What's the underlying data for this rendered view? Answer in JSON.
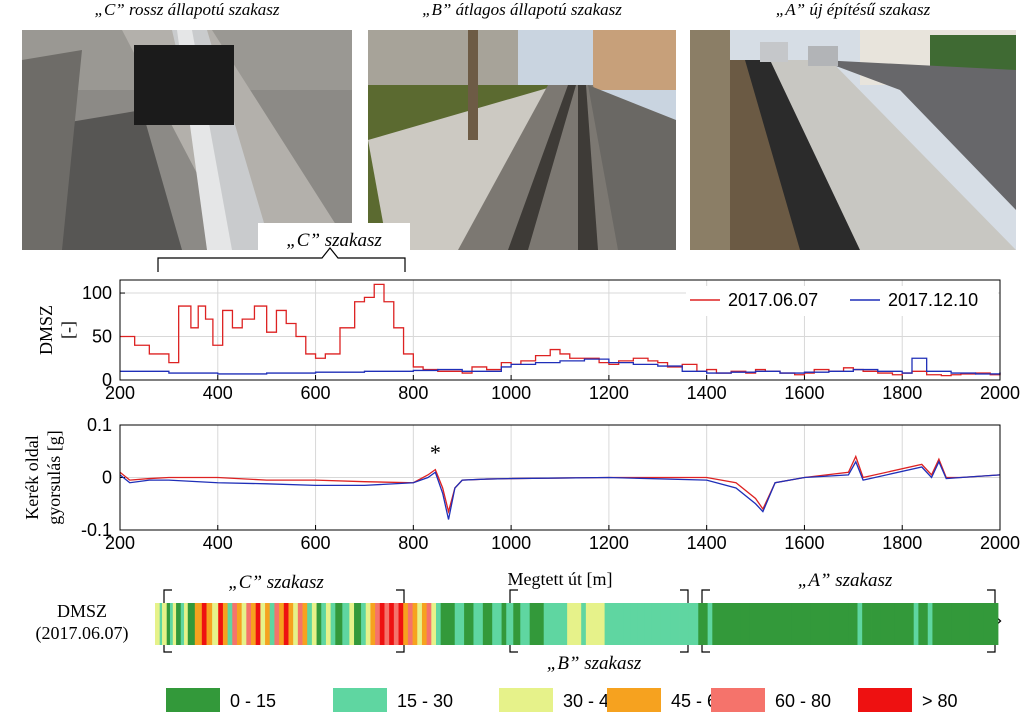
{
  "captions": [
    "„C” rossz állapotú szakasz",
    "„B” átlagos állapotú szakasz",
    "„A” új építésű szakasz"
  ],
  "photos": [
    {
      "name": "photo-section-c",
      "colors": {
        "sky": "#8f8e8a",
        "ground": "#8c8a86",
        "rail": "#b9bcbf"
      }
    },
    {
      "name": "photo-section-b",
      "colors": {
        "sky": "#c9d4e0",
        "ground": "#5b6a30",
        "rail": "#7c7872"
      }
    },
    {
      "name": "photo-section-a",
      "colors": {
        "sky": "#d6dde5",
        "ground": "#8a8780",
        "rail": "#c7c6c1"
      }
    }
  ],
  "section_labels": {
    "c": "„C” szakasz",
    "b": "„B” szakasz",
    "a": "„A” szakasz"
  },
  "colors": {
    "red": "#dd2222",
    "blue": "#1f2fb8",
    "grid": "#d8d8d8"
  },
  "chart_data": [
    {
      "type": "line",
      "name": "dmsz",
      "ylabel": [
        "DMSZ",
        "[-]"
      ],
      "xlim": [
        200,
        2000
      ],
      "ylim": [
        0,
        115
      ],
      "yticks": [
        0,
        50,
        100
      ],
      "xticks": [
        200,
        400,
        600,
        800,
        1000,
        1200,
        1400,
        1600,
        1800,
        2000
      ],
      "legend": {
        "placement": "top-right"
      },
      "series": [
        {
          "name": "2017.06.07",
          "color": "#dd2222",
          "step": true,
          "x": [
            200,
            230,
            260,
            300,
            320,
            345,
            360,
            375,
            390,
            410,
            430,
            450,
            475,
            500,
            520,
            540,
            560,
            580,
            600,
            620,
            650,
            680,
            700,
            720,
            740,
            760,
            780,
            800,
            820,
            850,
            880,
            900,
            920,
            950,
            980,
            1000,
            1020,
            1050,
            1080,
            1100,
            1120,
            1150,
            1180,
            1200,
            1220,
            1250,
            1280,
            1300,
            1320,
            1350,
            1380,
            1400,
            1420,
            1450,
            1480,
            1500,
            1520,
            1550,
            1580,
            1600,
            1620,
            1650,
            1680,
            1700,
            1720,
            1750,
            1780,
            1800,
            1820,
            1850,
            1880,
            1900,
            1920,
            1950,
            1980,
            2000
          ],
          "y": [
            50,
            40,
            30,
            20,
            85,
            60,
            85,
            70,
            40,
            80,
            60,
            70,
            85,
            55,
            80,
            65,
            50,
            30,
            25,
            30,
            60,
            90,
            95,
            110,
            90,
            60,
            30,
            15,
            12,
            10,
            10,
            8,
            15,
            12,
            20,
            18,
            22,
            28,
            35,
            30,
            25,
            25,
            20,
            18,
            22,
            25,
            22,
            20,
            15,
            18,
            10,
            12,
            8,
            10,
            8,
            12,
            10,
            8,
            6,
            8,
            12,
            10,
            14,
            12,
            10,
            8,
            6,
            8,
            10,
            6,
            5,
            6,
            7,
            8,
            6,
            8
          ]
        },
        {
          "name": "2017.12.10",
          "color": "#1f2fb8",
          "step": true,
          "x": [
            200,
            300,
            400,
            500,
            600,
            700,
            800,
            850,
            900,
            950,
            980,
            1000,
            1050,
            1100,
            1150,
            1200,
            1250,
            1300,
            1350,
            1400,
            1450,
            1500,
            1550,
            1600,
            1650,
            1700,
            1750,
            1800,
            1820,
            1850,
            1900,
            1950,
            2000
          ],
          "y": [
            10,
            8,
            7,
            8,
            9,
            10,
            11,
            12,
            10,
            10,
            15,
            18,
            20,
            22,
            24,
            20,
            18,
            16,
            10,
            8,
            9,
            10,
            8,
            9,
            10,
            12,
            10,
            8,
            25,
            10,
            8,
            7,
            9
          ]
        }
      ]
    },
    {
      "type": "line",
      "name": "accel",
      "ylabel": [
        "Kerék oldal",
        "gyorsulás [g]"
      ],
      "xlabel": "Megtett út [m]",
      "xlim": [
        200,
        2000
      ],
      "ylim": [
        -0.1,
        0.1
      ],
      "yticks": [
        -0.1,
        0,
        0.1
      ],
      "xticks": [
        200,
        400,
        600,
        800,
        1000,
        1200,
        1400,
        1600,
        1800,
        2000
      ],
      "annotation": {
        "text": "*",
        "x": 845
      },
      "series": [
        {
          "name": "2017.06.07",
          "color": "#dd2222",
          "x": [
            200,
            220,
            260,
            300,
            400,
            500,
            600,
            700,
            800,
            830,
            845,
            860,
            872,
            885,
            900,
            950,
            1000,
            1200,
            1400,
            1460,
            1500,
            1515,
            1540,
            1600,
            1690,
            1705,
            1720,
            1840,
            1860,
            1875,
            1890,
            1920,
            2000
          ],
          "y": [
            0.01,
            -0.005,
            -0.002,
            0.0,
            0.0,
            -0.005,
            -0.005,
            -0.008,
            -0.01,
            0.005,
            0.015,
            -0.02,
            -0.065,
            -0.02,
            -0.005,
            -0.003,
            -0.002,
            0.0,
            0.0,
            -0.01,
            -0.04,
            -0.06,
            -0.01,
            0.0,
            0.01,
            0.04,
            0.0,
            0.025,
            0.005,
            0.035,
            0.0,
            0.0,
            0.005
          ]
        },
        {
          "name": "2017.12.10",
          "color": "#1f2fb8",
          "x": [
            200,
            220,
            260,
            300,
            400,
            500,
            600,
            700,
            800,
            830,
            845,
            860,
            872,
            885,
            900,
            950,
            1000,
            1200,
            1400,
            1460,
            1500,
            1515,
            1540,
            1600,
            1690,
            1705,
            1720,
            1840,
            1860,
            1875,
            1890,
            1920,
            2000
          ],
          "y": [
            0.005,
            -0.01,
            -0.005,
            -0.005,
            -0.01,
            -0.012,
            -0.015,
            -0.015,
            -0.01,
            0.0,
            0.01,
            -0.03,
            -0.08,
            -0.02,
            -0.005,
            -0.003,
            -0.002,
            0.0,
            -0.005,
            -0.02,
            -0.05,
            -0.065,
            -0.01,
            0.0,
            0.005,
            0.03,
            -0.005,
            0.02,
            0.0,
            0.03,
            -0.002,
            0.0,
            0.005
          ]
        }
      ]
    },
    {
      "type": "heatmap",
      "name": "dmsz-bar",
      "row_label": [
        "DMSZ",
        "(2017.06.07)"
      ],
      "xlim": [
        200,
        2000
      ],
      "legend": {
        "placement": "bottom",
        "bins": [
          {
            "label": "0 - 15",
            "color": "#33993a"
          },
          {
            "label": "15 - 30",
            "color": "#5fd6a1"
          },
          {
            "label": "30 - 45",
            "color": "#e6f28a"
          },
          {
            "label": "45 - 60",
            "color": "#f6a21f"
          },
          {
            "label": "60 - 80",
            "color": "#f5736b"
          },
          {
            "label": "> 80",
            "color": "#ee1111"
          }
        ]
      },
      "segments": [
        {
          "x0": 200,
          "x1": 210,
          "bin": 2
        },
        {
          "x0": 210,
          "x1": 215,
          "bin": 1
        },
        {
          "x0": 215,
          "x1": 225,
          "bin": 2
        },
        {
          "x0": 225,
          "x1": 232,
          "bin": 0
        },
        {
          "x0": 232,
          "x1": 238,
          "bin": 1
        },
        {
          "x0": 238,
          "x1": 245,
          "bin": 2
        },
        {
          "x0": 245,
          "x1": 255,
          "bin": 0
        },
        {
          "x0": 255,
          "x1": 262,
          "bin": 1
        },
        {
          "x0": 262,
          "x1": 270,
          "bin": 2
        },
        {
          "x0": 270,
          "x1": 285,
          "bin": 0
        },
        {
          "x0": 285,
          "x1": 300,
          "bin": 3
        },
        {
          "x0": 300,
          "x1": 310,
          "bin": 5
        },
        {
          "x0": 310,
          "x1": 322,
          "bin": 3
        },
        {
          "x0": 322,
          "x1": 335,
          "bin": 2
        },
        {
          "x0": 335,
          "x1": 345,
          "bin": 5
        },
        {
          "x0": 345,
          "x1": 355,
          "bin": 3
        },
        {
          "x0": 355,
          "x1": 365,
          "bin": 1
        },
        {
          "x0": 365,
          "x1": 375,
          "bin": 4
        },
        {
          "x0": 375,
          "x1": 385,
          "bin": 3
        },
        {
          "x0": 385,
          "x1": 395,
          "bin": 2
        },
        {
          "x0": 395,
          "x1": 405,
          "bin": 4
        },
        {
          "x0": 405,
          "x1": 415,
          "bin": 3
        },
        {
          "x0": 415,
          "x1": 425,
          "bin": 5
        },
        {
          "x0": 425,
          "x1": 435,
          "bin": 2
        },
        {
          "x0": 435,
          "x1": 445,
          "bin": 3
        },
        {
          "x0": 445,
          "x1": 455,
          "bin": 1
        },
        {
          "x0": 455,
          "x1": 465,
          "bin": 4
        },
        {
          "x0": 465,
          "x1": 475,
          "bin": 3
        },
        {
          "x0": 475,
          "x1": 485,
          "bin": 5
        },
        {
          "x0": 485,
          "x1": 495,
          "bin": 3
        },
        {
          "x0": 495,
          "x1": 505,
          "bin": 2
        },
        {
          "x0": 505,
          "x1": 515,
          "bin": 4
        },
        {
          "x0": 515,
          "x1": 525,
          "bin": 3
        },
        {
          "x0": 525,
          "x1": 535,
          "bin": 1
        },
        {
          "x0": 535,
          "x1": 545,
          "bin": 2
        },
        {
          "x0": 545,
          "x1": 555,
          "bin": 0
        },
        {
          "x0": 555,
          "x1": 565,
          "bin": 1
        },
        {
          "x0": 565,
          "x1": 575,
          "bin": 2
        },
        {
          "x0": 575,
          "x1": 585,
          "bin": 1
        },
        {
          "x0": 585,
          "x1": 600,
          "bin": 0
        },
        {
          "x0": 600,
          "x1": 615,
          "bin": 1
        },
        {
          "x0": 615,
          "x1": 625,
          "bin": 2
        },
        {
          "x0": 625,
          "x1": 640,
          "bin": 0
        },
        {
          "x0": 640,
          "x1": 650,
          "bin": 1
        },
        {
          "x0": 650,
          "x1": 660,
          "bin": 2
        },
        {
          "x0": 660,
          "x1": 670,
          "bin": 3
        },
        {
          "x0": 670,
          "x1": 680,
          "bin": 4
        },
        {
          "x0": 680,
          "x1": 690,
          "bin": 5
        },
        {
          "x0": 690,
          "x1": 700,
          "bin": 4
        },
        {
          "x0": 700,
          "x1": 710,
          "bin": 5
        },
        {
          "x0": 710,
          "x1": 720,
          "bin": 4
        },
        {
          "x0": 720,
          "x1": 730,
          "bin": 5
        },
        {
          "x0": 730,
          "x1": 740,
          "bin": 3
        },
        {
          "x0": 740,
          "x1": 750,
          "bin": 4
        },
        {
          "x0": 750,
          "x1": 760,
          "bin": 3
        },
        {
          "x0": 760,
          "x1": 770,
          "bin": 2
        },
        {
          "x0": 770,
          "x1": 780,
          "bin": 3
        },
        {
          "x0": 780,
          "x1": 790,
          "bin": 4
        },
        {
          "x0": 790,
          "x1": 800,
          "bin": 2
        },
        {
          "x0": 800,
          "x1": 810,
          "bin": 1
        },
        {
          "x0": 810,
          "x1": 840,
          "bin": 0
        },
        {
          "x0": 840,
          "x1": 860,
          "bin": 1
        },
        {
          "x0": 860,
          "x1": 880,
          "bin": 0
        },
        {
          "x0": 880,
          "x1": 900,
          "bin": 1
        },
        {
          "x0": 900,
          "x1": 920,
          "bin": 0
        },
        {
          "x0": 920,
          "x1": 940,
          "bin": 1
        },
        {
          "x0": 940,
          "x1": 950,
          "bin": 0
        },
        {
          "x0": 950,
          "x1": 965,
          "bin": 1
        },
        {
          "x0": 965,
          "x1": 980,
          "bin": 0
        },
        {
          "x0": 980,
          "x1": 1000,
          "bin": 1
        },
        {
          "x0": 1000,
          "x1": 1030,
          "bin": 0
        },
        {
          "x0": 1030,
          "x1": 1080,
          "bin": 1
        },
        {
          "x0": 1080,
          "x1": 1110,
          "bin": 2
        },
        {
          "x0": 1110,
          "x1": 1120,
          "bin": 1
        },
        {
          "x0": 1120,
          "x1": 1160,
          "bin": 2
        },
        {
          "x0": 1160,
          "x1": 1200,
          "bin": 1
        },
        {
          "x0": 1200,
          "x1": 1215,
          "bin": 1
        },
        {
          "x0": 1215,
          "x1": 1230,
          "bin": 1
        },
        {
          "x0": 1230,
          "x1": 1245,
          "bin": 1
        },
        {
          "x0": 1245,
          "x1": 1260,
          "bin": 1
        },
        {
          "x0": 1260,
          "x1": 1280,
          "bin": 1
        },
        {
          "x0": 1280,
          "x1": 1300,
          "bin": 1
        },
        {
          "x0": 1300,
          "x1": 1320,
          "bin": 1
        },
        {
          "x0": 1320,
          "x1": 1340,
          "bin": 1
        },
        {
          "x0": 1340,
          "x1": 1360,
          "bin": 1
        },
        {
          "x0": 1360,
          "x1": 1380,
          "bin": 0
        },
        {
          "x0": 1380,
          "x1": 1390,
          "bin": 1
        },
        {
          "x0": 1390,
          "x1": 1450,
          "bin": 0
        },
        {
          "x0": 1450,
          "x1": 1470,
          "bin": 0
        },
        {
          "x0": 1470,
          "x1": 1500,
          "bin": 0
        },
        {
          "x0": 1500,
          "x1": 1530,
          "bin": 0
        },
        {
          "x0": 1530,
          "x1": 1560,
          "bin": 0
        },
        {
          "x0": 1560,
          "x1": 1600,
          "bin": 0
        },
        {
          "x0": 1600,
          "x1": 1640,
          "bin": 0
        },
        {
          "x0": 1640,
          "x1": 1680,
          "bin": 0
        },
        {
          "x0": 1680,
          "x1": 1700,
          "bin": 0
        },
        {
          "x0": 1700,
          "x1": 1710,
          "bin": 1
        },
        {
          "x0": 1710,
          "x1": 1730,
          "bin": 0
        },
        {
          "x0": 1730,
          "x1": 1750,
          "bin": 0
        },
        {
          "x0": 1750,
          "x1": 1780,
          "bin": 0
        },
        {
          "x0": 1780,
          "x1": 1800,
          "bin": 0
        },
        {
          "x0": 1800,
          "x1": 1820,
          "bin": 0
        },
        {
          "x0": 1820,
          "x1": 1830,
          "bin": 1
        },
        {
          "x0": 1830,
          "x1": 1850,
          "bin": 0
        },
        {
          "x0": 1850,
          "x1": 1860,
          "bin": 1
        },
        {
          "x0": 1860,
          "x1": 1900,
          "bin": 0
        },
        {
          "x0": 1900,
          "x1": 1940,
          "bin": 0
        },
        {
          "x0": 1940,
          "x1": 1970,
          "bin": 0
        },
        {
          "x0": 1970,
          "x1": 2000,
          "bin": 0
        },
        {
          "x0": 2000,
          "x1": 2000,
          "bin": 0
        }
      ]
    }
  ]
}
